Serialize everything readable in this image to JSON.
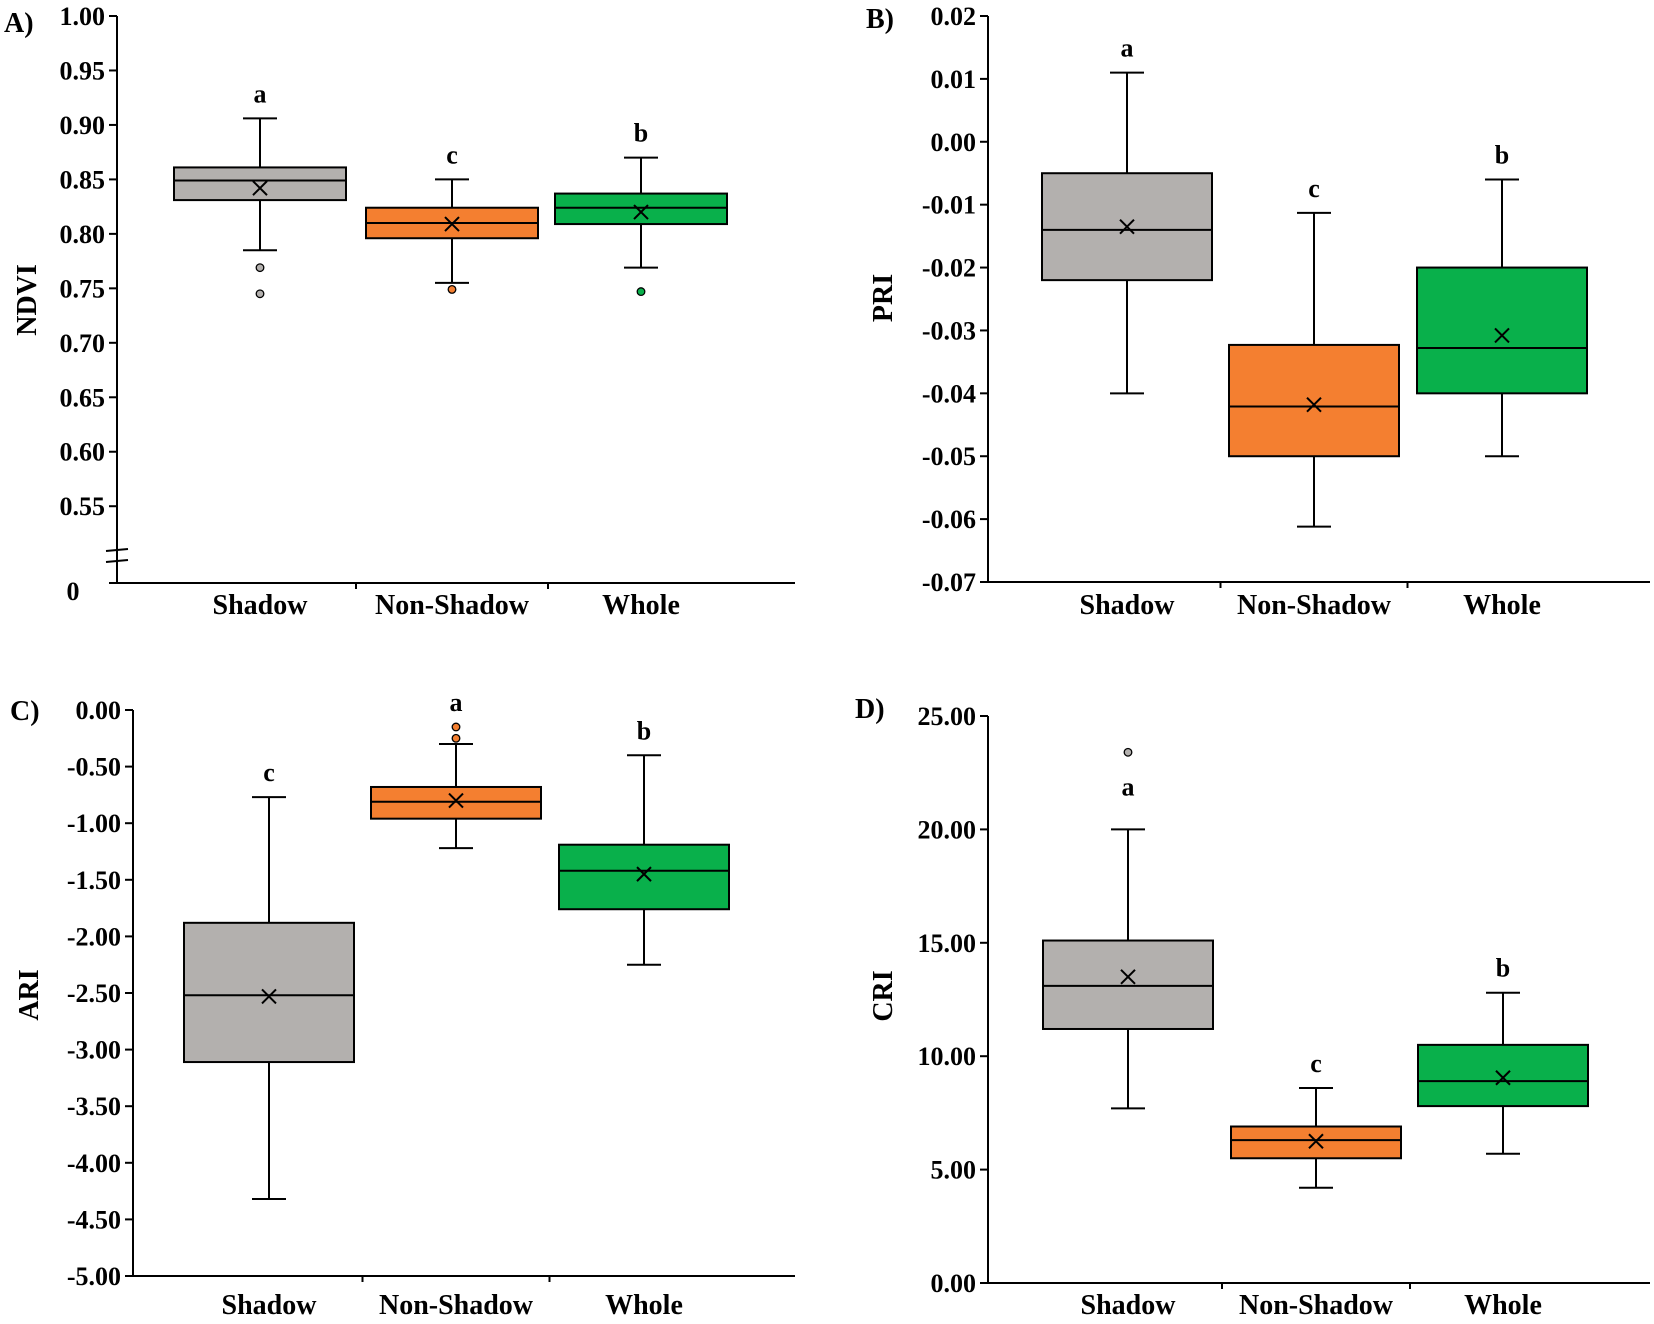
{
  "colors": {
    "shadow": "#b3b0ae",
    "non_shadow": "#f47f30",
    "whole": "#09b04b",
    "stroke": "#000000"
  },
  "chart_data": [
    {
      "type": "box",
      "panel": "A)",
      "ylabel": "NDVI",
      "ylim": [
        0.53,
        1.0
      ],
      "axis_break": true,
      "axis_break_label": "0",
      "yticks": [
        "1.00",
        "0.95",
        "0.90",
        "0.85",
        "0.80",
        "0.75",
        "0.70",
        "0.65",
        "0.60",
        "0.55"
      ],
      "categories": [
        "Shadow",
        "Non-Shadow",
        "Whole"
      ],
      "boxes": [
        {
          "min": 0.785,
          "q1": 0.831,
          "median": 0.849,
          "q3": 0.861,
          "max": 0.906,
          "mean": 0.842,
          "outliers": [
            0.769,
            0.745
          ],
          "letter": "a"
        },
        {
          "min": 0.755,
          "q1": 0.796,
          "median": 0.81,
          "q3": 0.824,
          "max": 0.85,
          "mean": 0.809,
          "outliers": [
            0.749
          ],
          "letter": "c"
        },
        {
          "min": 0.769,
          "q1": 0.809,
          "median": 0.824,
          "q3": 0.837,
          "max": 0.87,
          "mean": 0.82,
          "outliers": [
            0.747
          ],
          "letter": "b"
        }
      ]
    },
    {
      "type": "box",
      "panel": "B)",
      "ylabel": "PRI",
      "ylim": [
        -0.07,
        0.02
      ],
      "axis_break": false,
      "yticks": [
        "0.02",
        "0.01",
        "0.00",
        "-0.01",
        "-0.02",
        "-0.03",
        "-0.04",
        "-0.05",
        "-0.06",
        "-0.07"
      ],
      "categories": [
        "Shadow",
        "Non-Shadow",
        "Whole"
      ],
      "boxes": [
        {
          "min": -0.04,
          "q1": -0.022,
          "median": -0.014,
          "q3": -0.005,
          "max": 0.011,
          "mean": -0.0135,
          "outliers": [],
          "letter": "a"
        },
        {
          "min": -0.0612,
          "q1": -0.05,
          "median": -0.0421,
          "q3": -0.0323,
          "max": -0.0113,
          "mean": -0.0418,
          "outliers": [],
          "letter": "c"
        },
        {
          "min": -0.05,
          "q1": -0.04,
          "median": -0.0328,
          "q3": -0.02,
          "max": -0.006,
          "mean": -0.0308,
          "outliers": [],
          "letter": "b"
        }
      ]
    },
    {
      "type": "box",
      "panel": "C)",
      "ylabel": "ARI",
      "ylim": [
        -5.0,
        0.0
      ],
      "axis_break": false,
      "yticks": [
        "0.00",
        "-0.50",
        "-1.00",
        "-1.50",
        "-2.00",
        "-2.50",
        "-3.00",
        "-3.50",
        "-4.00",
        "-4.50",
        "-5.00"
      ],
      "categories": [
        "Shadow",
        "Non-Shadow",
        "Whole"
      ],
      "boxes": [
        {
          "min": -4.32,
          "q1": -3.11,
          "median": -2.52,
          "q3": -1.88,
          "max": -0.77,
          "mean": -2.53,
          "outliers": [],
          "letter": "c"
        },
        {
          "min": -1.22,
          "q1": -0.96,
          "median": -0.81,
          "q3": -0.68,
          "max": -0.3,
          "mean": -0.8,
          "outliers": [
            -0.15,
            -0.25
          ],
          "letter": "a"
        },
        {
          "min": -2.25,
          "q1": -1.76,
          "median": -1.42,
          "q3": -1.19,
          "max": -0.4,
          "mean": -1.45,
          "outliers": [],
          "letter": "b"
        }
      ]
    },
    {
      "type": "box",
      "panel": "D)",
      "ylabel": "CRI",
      "ylim": [
        0.0,
        25.0
      ],
      "axis_break": false,
      "yticks": [
        "25.00",
        "20.00",
        "15.00",
        "10.00",
        "5.00",
        "0.00"
      ],
      "categories": [
        "Shadow",
        "Non-Shadow",
        "Whole"
      ],
      "boxes": [
        {
          "min": 7.7,
          "q1": 11.2,
          "median": 13.1,
          "q3": 15.1,
          "max": 20.0,
          "mean": 13.5,
          "outliers": [
            23.4
          ],
          "letter": "a"
        },
        {
          "min": 4.2,
          "q1": 5.5,
          "median": 6.3,
          "q3": 6.9,
          "max": 8.6,
          "mean": 6.25,
          "outliers": [],
          "letter": "c"
        },
        {
          "min": 5.7,
          "q1": 7.8,
          "median": 8.9,
          "q3": 10.5,
          "max": 12.8,
          "mean": 9.05,
          "outliers": [],
          "letter": "b"
        }
      ]
    }
  ]
}
